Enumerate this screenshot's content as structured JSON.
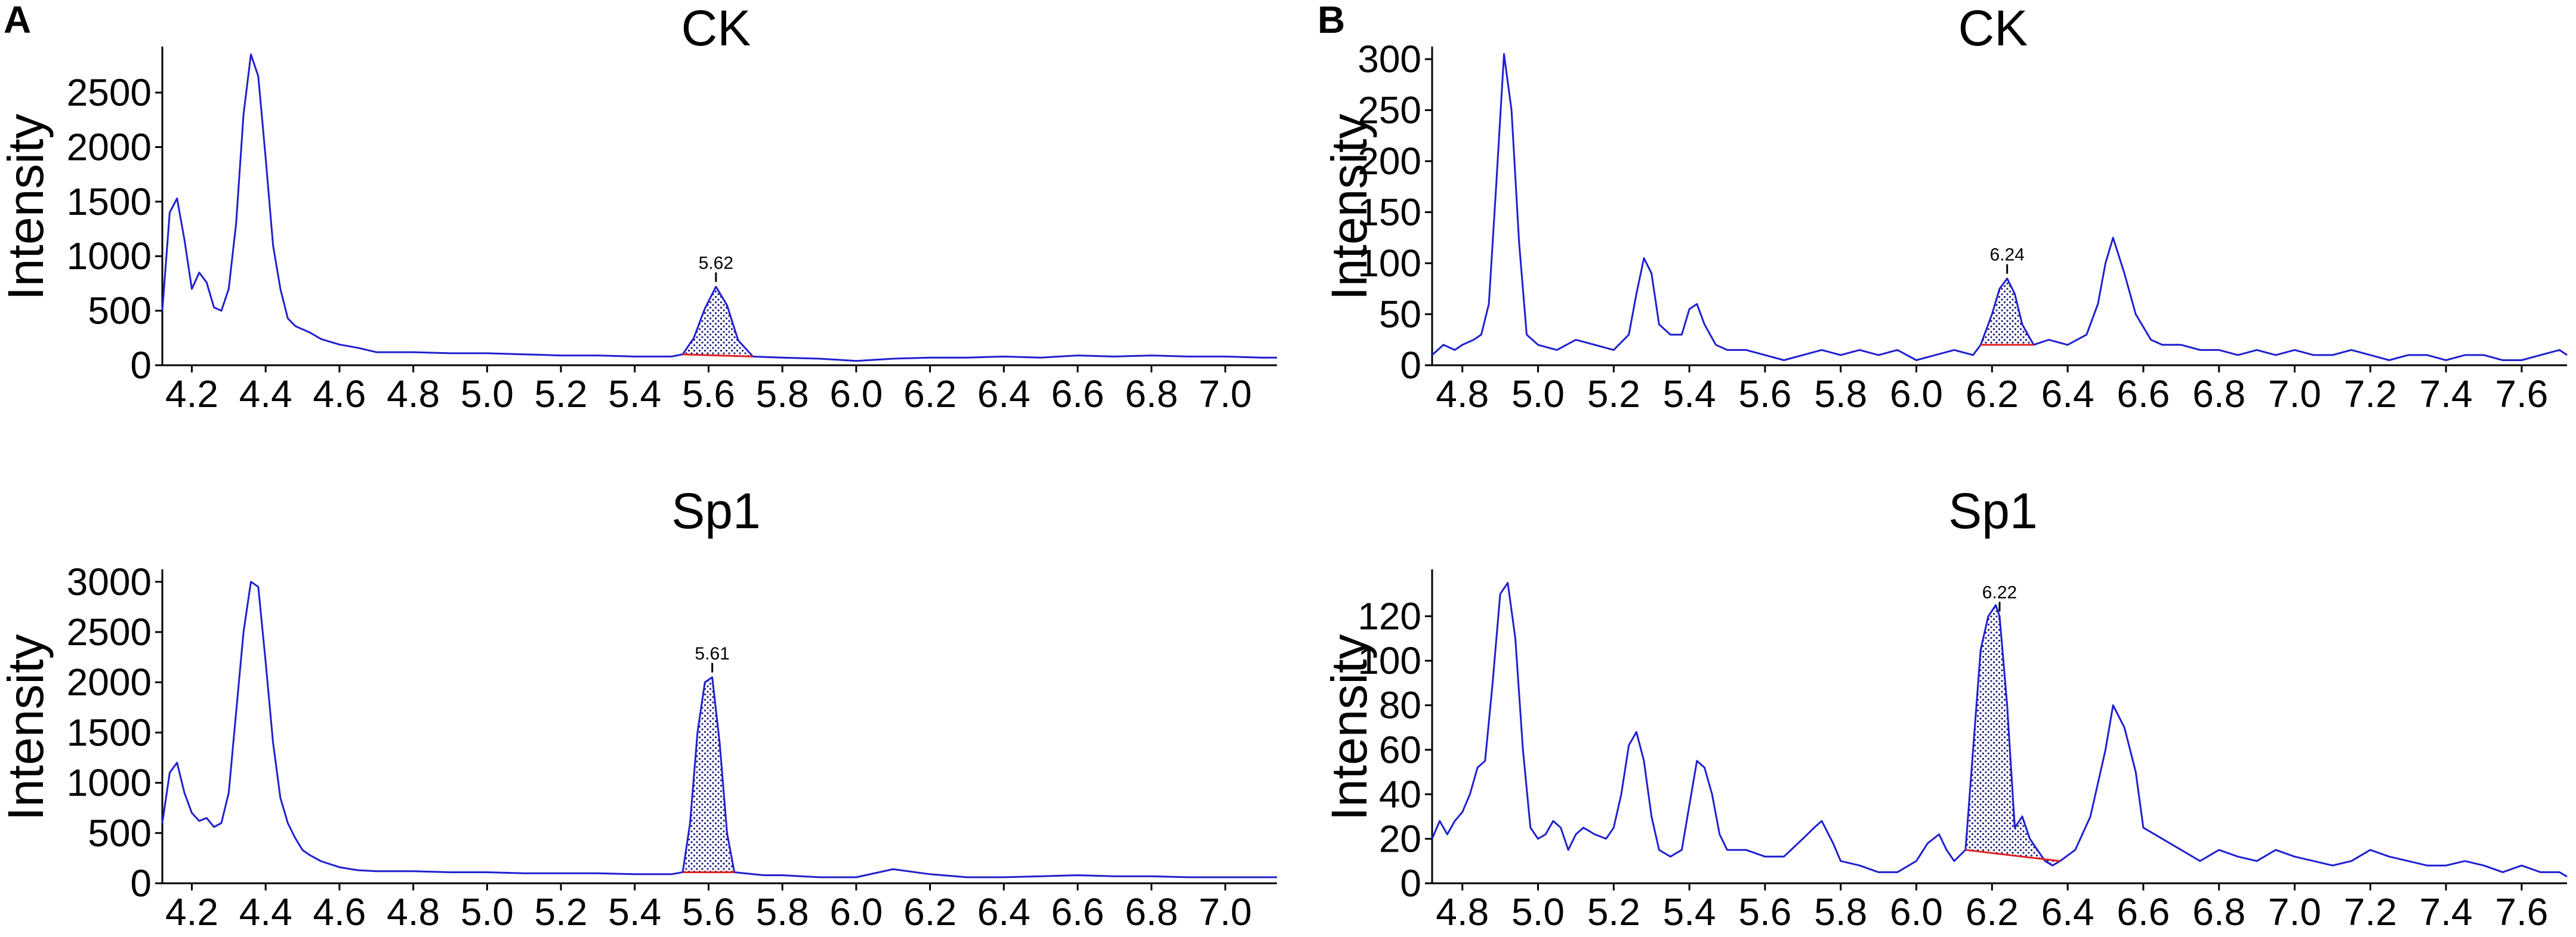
{
  "panels": [
    {
      "letter": "A"
    },
    {
      "letter": "B"
    }
  ],
  "chart_data": [
    {
      "type": "line",
      "panel": "A",
      "title": "CK",
      "xlabel": "",
      "ylabel": "Intensity",
      "xlim": [
        4.12,
        7.14
      ],
      "ylim": [
        0,
        2900
      ],
      "xticks": [
        "4.2",
        "4.4",
        "4.6",
        "4.8",
        "5.0",
        "5.2",
        "5.4",
        "5.6",
        "5.8",
        "6.0",
        "6.2",
        "6.4",
        "6.6",
        "6.8",
        "7.0"
      ],
      "yticks": [
        "0",
        "500",
        "1000",
        "1500",
        "2000",
        "2500"
      ],
      "peak": {
        "label": "5.62",
        "x": 5.62,
        "start": 5.53,
        "end": 5.72
      },
      "series": [
        {
          "x": [
            4.12,
            4.14,
            4.16,
            4.18,
            4.2,
            4.22,
            4.24,
            4.26,
            4.28,
            4.3,
            4.32,
            4.34,
            4.36,
            4.38,
            4.4,
            4.42,
            4.44,
            4.46,
            4.48,
            4.5,
            4.52,
            4.55,
            4.6,
            4.65,
            4.7,
            4.8,
            4.9,
            5.0,
            5.1,
            5.2,
            5.3,
            5.4,
            5.5,
            5.53,
            5.56,
            5.59,
            5.62,
            5.65,
            5.68,
            5.72,
            5.8,
            5.9,
            6.0,
            6.1,
            6.2,
            6.3,
            6.4,
            6.5,
            6.6,
            6.7,
            6.8,
            6.9,
            7.0,
            7.1,
            7.14
          ],
          "y": [
            500,
            1400,
            1530,
            1150,
            700,
            850,
            760,
            530,
            500,
            700,
            1300,
            2300,
            2850,
            2650,
            1900,
            1100,
            700,
            430,
            360,
            330,
            300,
            240,
            190,
            160,
            120,
            120,
            110,
            110,
            100,
            90,
            90,
            80,
            80,
            100,
            250,
            520,
            720,
            550,
            230,
            80,
            70,
            60,
            40,
            60,
            70,
            70,
            80,
            70,
            90,
            80,
            90,
            80,
            80,
            70,
            70
          ]
        }
      ]
    },
    {
      "type": "line",
      "panel": "A",
      "title": "Sp1",
      "xlabel": "",
      "ylabel": "Intensity",
      "xlim": [
        4.12,
        7.14
      ],
      "ylim": [
        0,
        3100
      ],
      "xticks": [
        "4.2",
        "4.4",
        "4.6",
        "4.8",
        "5.0",
        "5.2",
        "5.4",
        "5.6",
        "5.8",
        "6.0",
        "6.2",
        "6.4",
        "6.6",
        "6.8",
        "7.0"
      ],
      "yticks": [
        "0",
        "500",
        "1000",
        "1500",
        "2000",
        "2500",
        "3000"
      ],
      "peak": {
        "label": "5.61",
        "x": 5.61,
        "start": 5.53,
        "end": 5.67
      },
      "series": [
        {
          "x": [
            4.12,
            4.14,
            4.16,
            4.18,
            4.2,
            4.22,
            4.24,
            4.26,
            4.28,
            4.3,
            4.32,
            4.34,
            4.36,
            4.38,
            4.4,
            4.42,
            4.44,
            4.46,
            4.48,
            4.5,
            4.52,
            4.55,
            4.6,
            4.65,
            4.7,
            4.8,
            4.9,
            5.0,
            5.1,
            5.2,
            5.3,
            5.4,
            5.5,
            5.53,
            5.55,
            5.57,
            5.59,
            5.61,
            5.63,
            5.65,
            5.67,
            5.75,
            5.8,
            5.9,
            6.0,
            6.1,
            6.2,
            6.3,
            6.4,
            6.5,
            6.6,
            6.7,
            6.8,
            6.9,
            7.0,
            7.1,
            7.14
          ],
          "y": [
            600,
            1100,
            1200,
            900,
            700,
            620,
            650,
            560,
            600,
            900,
            1700,
            2500,
            3000,
            2950,
            2200,
            1400,
            850,
            600,
            450,
            330,
            280,
            220,
            160,
            130,
            120,
            120,
            110,
            110,
            100,
            100,
            100,
            90,
            90,
            110,
            600,
            1500,
            2000,
            2050,
            1400,
            500,
            110,
            80,
            80,
            60,
            60,
            140,
            90,
            60,
            60,
            70,
            80,
            70,
            70,
            60,
            60,
            60,
            60
          ]
        }
      ]
    },
    {
      "type": "line",
      "panel": "B",
      "title": "CK",
      "xlabel": "",
      "ylabel": "Intensity",
      "xlim": [
        4.72,
        7.72
      ],
      "ylim": [
        0,
        310
      ],
      "xticks": [
        "4.8",
        "5.0",
        "5.2",
        "5.4",
        "5.6",
        "5.8",
        "6.0",
        "6.2",
        "6.4",
        "6.6",
        "6.8",
        "7.0",
        "7.2",
        "7.4",
        "7.6"
      ],
      "yticks": [
        "0",
        "50",
        "100",
        "150",
        "200",
        "250",
        "300"
      ],
      "peak": {
        "label": "6.24",
        "x": 6.24,
        "start": 6.17,
        "end": 6.31
      },
      "series": [
        {
          "x": [
            4.72,
            4.75,
            4.78,
            4.8,
            4.83,
            4.85,
            4.87,
            4.89,
            4.91,
            4.93,
            4.95,
            4.97,
            5.0,
            5.05,
            5.1,
            5.15,
            5.2,
            5.24,
            5.26,
            5.28,
            5.3,
            5.32,
            5.35,
            5.38,
            5.4,
            5.42,
            5.44,
            5.47,
            5.5,
            5.55,
            5.6,
            5.65,
            5.7,
            5.75,
            5.8,
            5.85,
            5.9,
            5.95,
            6.0,
            6.05,
            6.1,
            6.15,
            6.17,
            6.2,
            6.22,
            6.24,
            6.26,
            6.28,
            6.31,
            6.35,
            6.4,
            6.45,
            6.48,
            6.5,
            6.52,
            6.55,
            6.58,
            6.62,
            6.65,
            6.7,
            6.75,
            6.8,
            6.85,
            6.9,
            6.95,
            7.0,
            7.05,
            7.1,
            7.15,
            7.2,
            7.25,
            7.3,
            7.35,
            7.4,
            7.45,
            7.5,
            7.55,
            7.6,
            7.65,
            7.7,
            7.72
          ],
          "y": [
            10,
            20,
            15,
            20,
            25,
            30,
            60,
            180,
            305,
            250,
            120,
            30,
            20,
            15,
            25,
            20,
            15,
            30,
            70,
            105,
            90,
            40,
            30,
            30,
            55,
            60,
            40,
            20,
            15,
            15,
            10,
            5,
            10,
            15,
            10,
            15,
            10,
            15,
            5,
            10,
            15,
            10,
            20,
            50,
            75,
            85,
            70,
            40,
            20,
            25,
            20,
            30,
            60,
            100,
            125,
            90,
            50,
            25,
            20,
            20,
            15,
            15,
            10,
            15,
            10,
            15,
            10,
            10,
            15,
            10,
            5,
            10,
            10,
            5,
            10,
            10,
            5,
            5,
            10,
            15,
            10
          ]
        }
      ]
    },
    {
      "type": "line",
      "panel": "B",
      "title": "Sp1",
      "xlabel": "",
      "ylabel": "Intensity",
      "xlim": [
        4.72,
        7.72
      ],
      "ylim": [
        0,
        140
      ],
      "xticks": [
        "4.8",
        "5.0",
        "5.2",
        "5.4",
        "5.6",
        "5.8",
        "6.0",
        "6.2",
        "6.4",
        "6.6",
        "6.8",
        "7.0",
        "7.2",
        "7.4",
        "7.6"
      ],
      "yticks": [
        "0",
        "20",
        "40",
        "60",
        "80",
        "100",
        "120"
      ],
      "peak": {
        "label": "6.22",
        "x": 6.22,
        "start": 6.13,
        "end": 6.38
      },
      "series": [
        {
          "x": [
            4.72,
            4.74,
            4.76,
            4.78,
            4.8,
            4.82,
            4.84,
            4.86,
            4.88,
            4.9,
            4.92,
            4.94,
            4.96,
            4.98,
            5.0,
            5.02,
            5.04,
            5.06,
            5.08,
            5.1,
            5.12,
            5.15,
            5.18,
            5.2,
            5.22,
            5.24,
            5.26,
            5.28,
            5.3,
            5.32,
            5.35,
            5.38,
            5.4,
            5.42,
            5.44,
            5.46,
            5.48,
            5.5,
            5.55,
            5.6,
            5.65,
            5.7,
            5.73,
            5.75,
            5.78,
            5.8,
            5.85,
            5.9,
            5.95,
            6.0,
            6.03,
            6.06,
            6.08,
            6.1,
            6.13,
            6.15,
            6.17,
            6.19,
            6.21,
            6.22,
            6.24,
            6.26,
            6.28,
            6.3,
            6.32,
            6.34,
            6.36,
            6.38,
            6.42,
            6.46,
            6.5,
            6.52,
            6.55,
            6.58,
            6.6,
            6.65,
            6.7,
            6.75,
            6.8,
            6.85,
            6.9,
            6.95,
            7.0,
            7.05,
            7.1,
            7.15,
            7.2,
            7.25,
            7.3,
            7.35,
            7.4,
            7.45,
            7.5,
            7.55,
            7.6,
            7.65,
            7.7,
            7.72
          ],
          "y": [
            20,
            28,
            22,
            28,
            32,
            40,
            52,
            55,
            90,
            130,
            135,
            110,
            60,
            25,
            20,
            22,
            28,
            25,
            15,
            22,
            25,
            22,
            20,
            25,
            40,
            62,
            68,
            55,
            30,
            15,
            12,
            15,
            35,
            55,
            52,
            40,
            22,
            15,
            15,
            12,
            12,
            20,
            25,
            28,
            18,
            10,
            8,
            5,
            5,
            10,
            18,
            22,
            15,
            10,
            15,
            60,
            105,
            120,
            125,
            120,
            80,
            25,
            30,
            20,
            15,
            10,
            8,
            10,
            15,
            30,
            60,
            80,
            70,
            50,
            25,
            20,
            15,
            10,
            15,
            12,
            10,
            15,
            12,
            10,
            8,
            10,
            15,
            12,
            10,
            8,
            8,
            10,
            8,
            5,
            8,
            5,
            5,
            3
          ]
        }
      ]
    }
  ]
}
